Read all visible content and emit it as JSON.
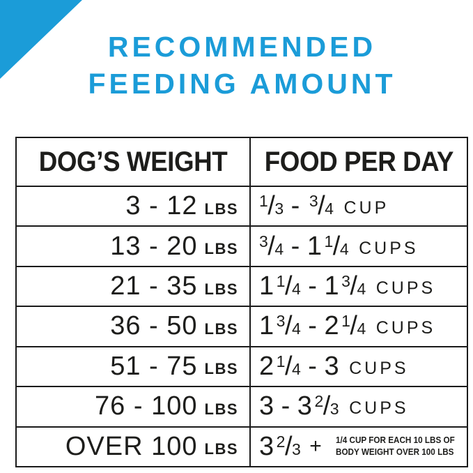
{
  "page": {
    "title_line1": "RECOMMENDED",
    "title_line2": "FEEDING AMOUNT",
    "accent_color": "#1B9CD8",
    "text_color": "#1D1D1B"
  },
  "table": {
    "headers": {
      "weight": "DOG’S WEIGHT",
      "food": "FOOD PER DAY"
    },
    "rows": [
      {
        "weight": {
          "range": "3 - 12",
          "unit": "LBS"
        },
        "food": [
          {
            "type": "frac",
            "n": "1",
            "d": "3"
          },
          {
            "type": "dash"
          },
          {
            "type": "frac",
            "n": "3",
            "d": "4"
          },
          {
            "type": "unit",
            "v": "CUP"
          }
        ]
      },
      {
        "weight": {
          "range": "13 - 20",
          "unit": "LBS"
        },
        "food": [
          {
            "type": "frac",
            "n": "3",
            "d": "4"
          },
          {
            "type": "dash"
          },
          {
            "type": "int",
            "v": "1"
          },
          {
            "type": "frac",
            "n": "1",
            "d": "4"
          },
          {
            "type": "unit",
            "v": "CUPS"
          }
        ]
      },
      {
        "weight": {
          "range": "21 - 35",
          "unit": "LBS"
        },
        "food": [
          {
            "type": "int",
            "v": "1"
          },
          {
            "type": "frac",
            "n": "1",
            "d": "4"
          },
          {
            "type": "dash"
          },
          {
            "type": "int",
            "v": "1"
          },
          {
            "type": "frac",
            "n": "3",
            "d": "4"
          },
          {
            "type": "unit",
            "v": "CUPS"
          }
        ]
      },
      {
        "weight": {
          "range": "36 - 50",
          "unit": "LBS"
        },
        "food": [
          {
            "type": "int",
            "v": "1"
          },
          {
            "type": "frac",
            "n": "3",
            "d": "4"
          },
          {
            "type": "dash"
          },
          {
            "type": "int",
            "v": "2"
          },
          {
            "type": "frac",
            "n": "1",
            "d": "4"
          },
          {
            "type": "unit",
            "v": "CUPS"
          }
        ]
      },
      {
        "weight": {
          "range": "51 - 75",
          "unit": "LBS"
        },
        "food": [
          {
            "type": "int",
            "v": "2"
          },
          {
            "type": "frac",
            "n": "1",
            "d": "4"
          },
          {
            "type": "dash"
          },
          {
            "type": "int",
            "v": "3"
          },
          {
            "type": "unit",
            "v": "CUPS"
          }
        ]
      },
      {
        "weight": {
          "range": "76 - 100",
          "unit": "LBS"
        },
        "food": [
          {
            "type": "int",
            "v": "3"
          },
          {
            "type": "dash"
          },
          {
            "type": "int",
            "v": "3"
          },
          {
            "type": "frac",
            "n": "2",
            "d": "3"
          },
          {
            "type": "unit",
            "v": "CUPS"
          }
        ]
      },
      {
        "weight": {
          "range": "OVER 100",
          "unit": "LBS"
        },
        "food": [
          {
            "type": "int",
            "v": "3"
          },
          {
            "type": "frac",
            "n": "2",
            "d": "3"
          },
          {
            "type": "plus"
          },
          {
            "type": "note",
            "lines": [
              "1/4 CUP FOR EACH 10 LBS OF",
              "BODY WEIGHT OVER 100 LBS"
            ]
          }
        ]
      }
    ]
  },
  "chart_data": {
    "type": "table",
    "title": "RECOMMENDED FEEDING AMOUNT",
    "columns": [
      "DOG’S WEIGHT",
      "FOOD PER DAY"
    ],
    "rows": [
      [
        "3 - 12 LBS",
        "1/3 - 3/4 CUP"
      ],
      [
        "13 - 20 LBS",
        "3/4 - 1 1/4 CUPS"
      ],
      [
        "21 - 35 LBS",
        "1 1/4 - 1 3/4 CUPS"
      ],
      [
        "36 - 50 LBS",
        "1 3/4 - 2 1/4 CUPS"
      ],
      [
        "51 - 75 LBS",
        "2 1/4 - 3 CUPS"
      ],
      [
        "76 - 100 LBS",
        "3 - 3 2/3 CUPS"
      ],
      [
        "OVER 100 LBS",
        "3 2/3 + 1/4 CUP FOR EACH 10 LBS OF BODY WEIGHT OVER 100 LBS"
      ]
    ]
  }
}
